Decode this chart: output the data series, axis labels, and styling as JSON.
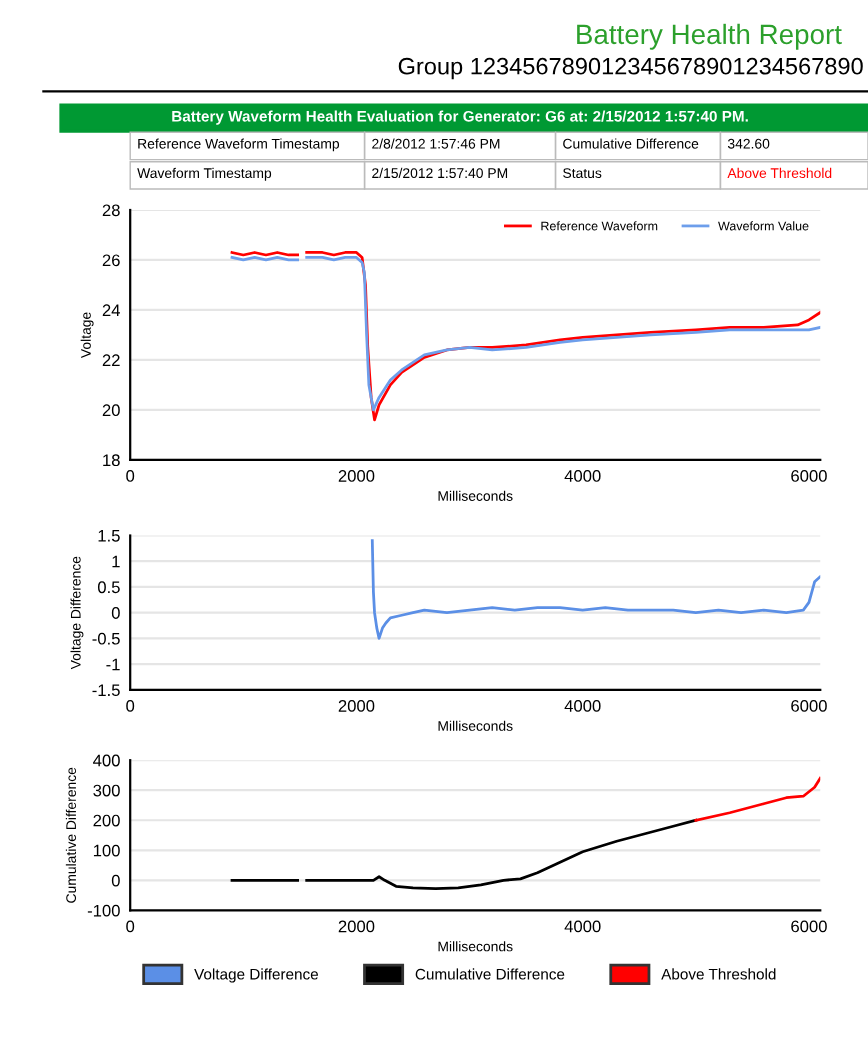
{
  "chart_data": [
    {
      "type": "line",
      "title": "Battery Health Report",
      "subtitle": "Group 123456789012345678901234567890",
      "annotations": [
        "Battery Waveform Health Evaluation for Generator: G6 at: 2/15/2012 1:57:40 PM.",
        "Reference Waveform Timestamp",
        "2/8/2012 1:57:46 PM",
        "Cumulative Difference",
        "342.60",
        "Waveform Timestamp",
        "2/15/2012 1:57:40 PM",
        "Status",
        "Above Threshold"
      ],
      "xlabel": "Milliseconds",
      "ylabel": "Voltage",
      "xlim": [
        0,
        6100
      ],
      "xticks": [
        0,
        2000,
        4000,
        6000
      ],
      "ylim": [
        18,
        28
      ],
      "yticks": [
        18,
        20,
        22,
        24,
        26,
        28
      ],
      "grid": "y",
      "legend": "top right",
      "series": [
        {
          "name": "Reference Waveform",
          "color": "#ff0000",
          "x": [
            900,
            1000,
            1100,
            1200,
            1300,
            1400,
            1480,
            1520,
            1560,
            1700,
            1800,
            1900,
            2000,
            2050,
            2080,
            2100,
            2130,
            2160,
            2200,
            2300,
            2400,
            2500,
            2600,
            2800,
            3000,
            3200,
            3500,
            3800,
            4000,
            4300,
            4600,
            5000,
            5300,
            5600,
            5900,
            6000,
            6100
          ],
          "values": [
            26.3,
            26.2,
            26.3,
            26.2,
            26.3,
            26.2,
            26.2,
            null,
            26.3,
            26.3,
            26.2,
            26.3,
            26.3,
            26.1,
            25.0,
            22.5,
            20.5,
            19.6,
            20.2,
            21.0,
            21.5,
            21.8,
            22.1,
            22.4,
            22.5,
            22.5,
            22.6,
            22.8,
            22.9,
            23.0,
            23.1,
            23.2,
            23.3,
            23.3,
            23.4,
            23.6,
            23.9
          ]
        },
        {
          "name": "Waveform Value",
          "color": "#6d9eeb",
          "x": [
            900,
            1000,
            1100,
            1200,
            1300,
            1400,
            1480,
            1520,
            1560,
            1700,
            1800,
            1900,
            2000,
            2050,
            2070,
            2090,
            2110,
            2150,
            2200,
            2300,
            2400,
            2500,
            2600,
            2800,
            3000,
            3200,
            3500,
            3800,
            4000,
            4300,
            4600,
            5000,
            5300,
            5600,
            5900,
            6000,
            6100
          ],
          "values": [
            26.1,
            26.0,
            26.1,
            26.0,
            26.1,
            26.0,
            26.0,
            null,
            26.1,
            26.1,
            26.0,
            26.1,
            26.1,
            25.9,
            25.5,
            23.0,
            21.0,
            20.0,
            20.5,
            21.2,
            21.6,
            21.9,
            22.2,
            22.4,
            22.5,
            22.4,
            22.5,
            22.7,
            22.8,
            22.9,
            23.0,
            23.1,
            23.2,
            23.2,
            23.2,
            23.2,
            23.3
          ]
        }
      ]
    },
    {
      "type": "line",
      "xlabel": "Milliseconds",
      "ylabel": "Voltage Difference",
      "xlim": [
        0,
        6100
      ],
      "xticks": [
        0,
        2000,
        4000,
        6000
      ],
      "ylim": [
        -1.5,
        1.5
      ],
      "yticks": [
        -1.5,
        -1,
        -0.5,
        0,
        0.5,
        1,
        1.5
      ],
      "grid": "y",
      "legend": "bottom",
      "series": [
        {
          "name": "Voltage Difference",
          "color": "#5b8fe6",
          "x": [
            2140,
            2150,
            2160,
            2180,
            2200,
            2230,
            2260,
            2300,
            2400,
            2500,
            2600,
            2800,
            3000,
            3200,
            3400,
            3600,
            3800,
            4000,
            4200,
            4400,
            4600,
            4800,
            5000,
            5200,
            5400,
            5600,
            5800,
            5950,
            6000,
            6050,
            6100
          ],
          "values": [
            1.4,
            0.4,
            0.0,
            -0.3,
            -0.5,
            -0.3,
            -0.2,
            -0.1,
            -0.05,
            0.0,
            0.05,
            0.0,
            0.05,
            0.1,
            0.05,
            0.1,
            0.1,
            0.05,
            0.1,
            0.05,
            0.05,
            0.05,
            0.0,
            0.05,
            0.0,
            0.05,
            0.0,
            0.05,
            0.2,
            0.6,
            0.7
          ]
        }
      ]
    },
    {
      "type": "line",
      "xlabel": "Milliseconds",
      "ylabel": "Cumulative Difference",
      "xlim": [
        0,
        6100
      ],
      "xticks": [
        0,
        2000,
        4000,
        6000
      ],
      "ylim": [
        -100,
        400
      ],
      "yticks": [
        -100,
        0,
        100,
        200,
        300,
        400
      ],
      "grid": "y",
      "legend": "bottom",
      "series": [
        {
          "name": "Cumulative Difference",
          "color": "#000000",
          "x": [
            900,
            1480,
            1520,
            1560,
            2150,
            2200,
            2250,
            2350,
            2500,
            2700,
            2900,
            3100,
            3300,
            3450,
            3600,
            3800,
            4000,
            4300,
            4600,
            4800,
            5000
          ],
          "values": [
            0,
            0,
            null,
            0,
            0,
            12,
            0,
            -20,
            -25,
            -28,
            -25,
            -15,
            0,
            5,
            25,
            60,
            95,
            130,
            160,
            180,
            200
          ]
        },
        {
          "name": "Above Threshold",
          "color": "#ff0000",
          "x": [
            5000,
            5300,
            5600,
            5800,
            5950,
            6050,
            6100
          ],
          "values": [
            200,
            225,
            255,
            275,
            280,
            310,
            340
          ]
        }
      ]
    }
  ]
}
